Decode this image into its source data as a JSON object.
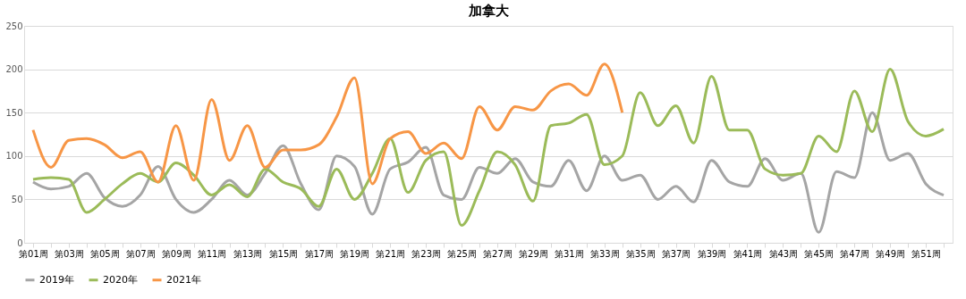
{
  "chart_data": {
    "type": "line",
    "title": "加拿大",
    "categories": [
      "第01周",
      null,
      "第03周",
      null,
      "第05周",
      null,
      "第07周",
      null,
      "第09周",
      null,
      "第11周",
      null,
      "第13周",
      null,
      "第15周",
      null,
      "第17周",
      null,
      "第19周",
      null,
      "第21周",
      null,
      "第23周",
      null,
      "第25周",
      null,
      "第27周",
      null,
      "第29周",
      null,
      "第31周",
      null,
      "第33周",
      null,
      "第35周",
      null,
      "第37周",
      null,
      "第39周",
      null,
      "第41周",
      null,
      "第43周",
      null,
      "第45周",
      null,
      "第47周",
      null,
      "第49周",
      null,
      "第51周",
      null
    ],
    "series": [
      {
        "name": "2019年",
        "color": "#a5a5a5",
        "values": [
          70,
          62,
          65,
          80,
          52,
          42,
          55,
          88,
          50,
          35,
          50,
          72,
          55,
          80,
          112,
          68,
          38,
          100,
          88,
          33,
          85,
          93,
          110,
          55,
          50,
          87,
          80,
          97,
          70,
          65,
          95,
          60,
          100,
          72,
          78,
          50,
          65,
          47,
          95,
          70,
          65,
          97,
          72,
          80,
          12,
          82,
          75,
          150,
          95,
          103,
          68,
          55
        ]
      },
      {
        "name": "2020年",
        "color": "#9bbb59",
        "values": [
          73,
          75,
          73,
          35,
          50,
          68,
          80,
          70,
          92,
          78,
          55,
          67,
          53,
          85,
          70,
          62,
          42,
          85,
          50,
          80,
          120,
          58,
          95,
          105,
          20,
          60,
          105,
          90,
          48,
          135,
          138,
          148,
          90,
          100,
          173,
          135,
          158,
          115,
          192,
          130,
          130,
          85,
          78,
          80,
          123,
          105,
          175,
          128,
          200,
          140,
          123,
          131
        ]
      },
      {
        "name": "2021年",
        "color": "#f79646",
        "values": [
          130,
          87,
          118,
          120,
          113,
          98,
          105,
          70,
          135,
          72,
          165,
          95,
          135,
          87,
          107,
          107,
          113,
          145,
          190,
          68,
          120,
          128,
          103,
          115,
          97,
          157,
          130,
          157,
          153,
          175,
          183,
          170,
          206,
          150,
          null,
          null,
          null,
          null,
          null,
          null,
          null,
          null,
          null,
          null,
          null,
          null,
          null,
          null,
          null,
          null,
          null,
          null
        ]
      }
    ],
    "ylim": [
      0,
      250
    ],
    "yticks": [
      0,
      50,
      100,
      150,
      200,
      250
    ],
    "grid": "y",
    "legend": "bottom",
    "line_style": "solid",
    "marker": "none"
  }
}
